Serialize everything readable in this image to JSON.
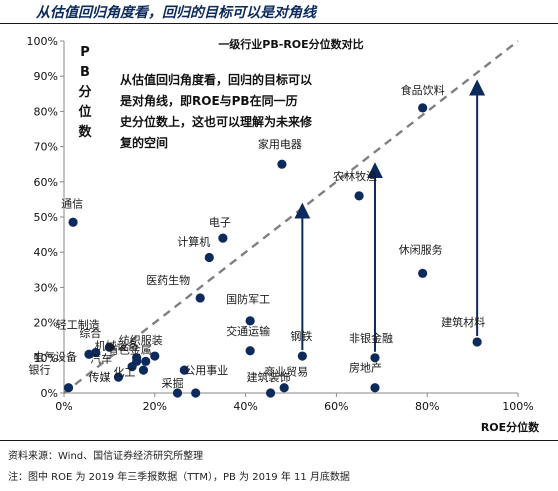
{
  "header": {
    "headline": "从估值回归角度看，回归的目标可以是对角线"
  },
  "footer": {
    "source": "资料来源：Wind、国信证券经济研究所整理",
    "note": "注：图中 ROE 为 2019 年三季报数据（TTM），PB 为 2019 年 11 月底数据"
  },
  "chart_data": {
    "type": "scatter",
    "title": "一级行业PB-ROE分位数对比",
    "xlabel": "ROE分位数",
    "ylabel": "PB分位数",
    "xlim": [
      0,
      1
    ],
    "ylim": [
      0,
      1
    ],
    "x_ticks": [
      "0%",
      "20%",
      "40%",
      "60%",
      "80%",
      "100%"
    ],
    "y_ticks": [
      "0%",
      "10%",
      "20%",
      "30%",
      "40%",
      "50%",
      "60%",
      "70%",
      "80%",
      "90%",
      "100%"
    ],
    "grid": false,
    "diagonal_reference": true,
    "annotation": "从估值回归角度看，回归的目标可以是对角线，即ROE与PB在同一历史分位数上，这也可以理解为未来修复的空间",
    "colors": {
      "point": "#0d2a5c",
      "arrow": "#0d2a5c",
      "diagonal": "#808080",
      "headline": "#0d2a5c"
    },
    "points": [
      {
        "label": "食品饮料",
        "x": 0.79,
        "y": 0.81
      },
      {
        "label": "家用电器",
        "x": 0.48,
        "y": 0.65
      },
      {
        "label": "农林牧渔",
        "x": 0.65,
        "y": 0.56
      },
      {
        "label": "通信",
        "x": 0.02,
        "y": 0.485
      },
      {
        "label": "电子",
        "x": 0.35,
        "y": 0.44
      },
      {
        "label": "计算机",
        "x": 0.32,
        "y": 0.385
      },
      {
        "label": "休闲服务",
        "x": 0.79,
        "y": 0.34
      },
      {
        "label": "医药生物",
        "x": 0.3,
        "y": 0.27
      },
      {
        "label": "国防军工",
        "x": 0.41,
        "y": 0.205
      },
      {
        "label": "建筑材料",
        "x": 0.91,
        "y": 0.145
      },
      {
        "label": "交通运输",
        "x": 0.41,
        "y": 0.12
      },
      {
        "label": "钢铁",
        "x": 0.525,
        "y": 0.105
      },
      {
        "label": "非银金融",
        "x": 0.685,
        "y": 0.1
      },
      {
        "label": "房地产",
        "x": 0.685,
        "y": 0.015
      },
      {
        "label": "轻工制造",
        "x": 0.07,
        "y": 0.115
      },
      {
        "label": "综合",
        "x": 0.1,
        "y": 0.13
      },
      {
        "label": "电气设备",
        "x": 0.055,
        "y": 0.11
      },
      {
        "label": "传媒",
        "x": 0.12,
        "y": 0.045
      },
      {
        "label": "纺织服装",
        "x": 0.2,
        "y": 0.105
      },
      {
        "label": "有色金属",
        "x": 0.18,
        "y": 0.09
      },
      {
        "label": "化工",
        "x": 0.175,
        "y": 0.065
      },
      {
        "label": "机械设备",
        "x": 0.16,
        "y": 0.09
      },
      {
        "label": "公用事业",
        "x": 0.265,
        "y": 0.065
      },
      {
        "label": "采掘",
        "x": 0.25,
        "y": 0.0
      },
      {
        "label": "银行",
        "x": 0.01,
        "y": 0.015
      },
      {
        "label": "建筑装饰",
        "x": 0.455,
        "y": 0.0
      },
      {
        "label": "商业贸易",
        "x": 0.485,
        "y": 0.015
      },
      {
        "label": "汽车",
        "x": 0.15,
        "y": 0.075
      },
      {
        "label": "",
        "x": 0.16,
        "y": 0.1
      },
      {
        "label": "",
        "x": 0.29,
        "y": 0.0
      }
    ],
    "arrows": [
      {
        "x": 0.525,
        "from": 0.105,
        "to": 0.535
      },
      {
        "x": 0.685,
        "from": 0.1,
        "to": 0.65
      },
      {
        "x": 0.91,
        "from": 0.145,
        "to": 0.885
      }
    ]
  }
}
